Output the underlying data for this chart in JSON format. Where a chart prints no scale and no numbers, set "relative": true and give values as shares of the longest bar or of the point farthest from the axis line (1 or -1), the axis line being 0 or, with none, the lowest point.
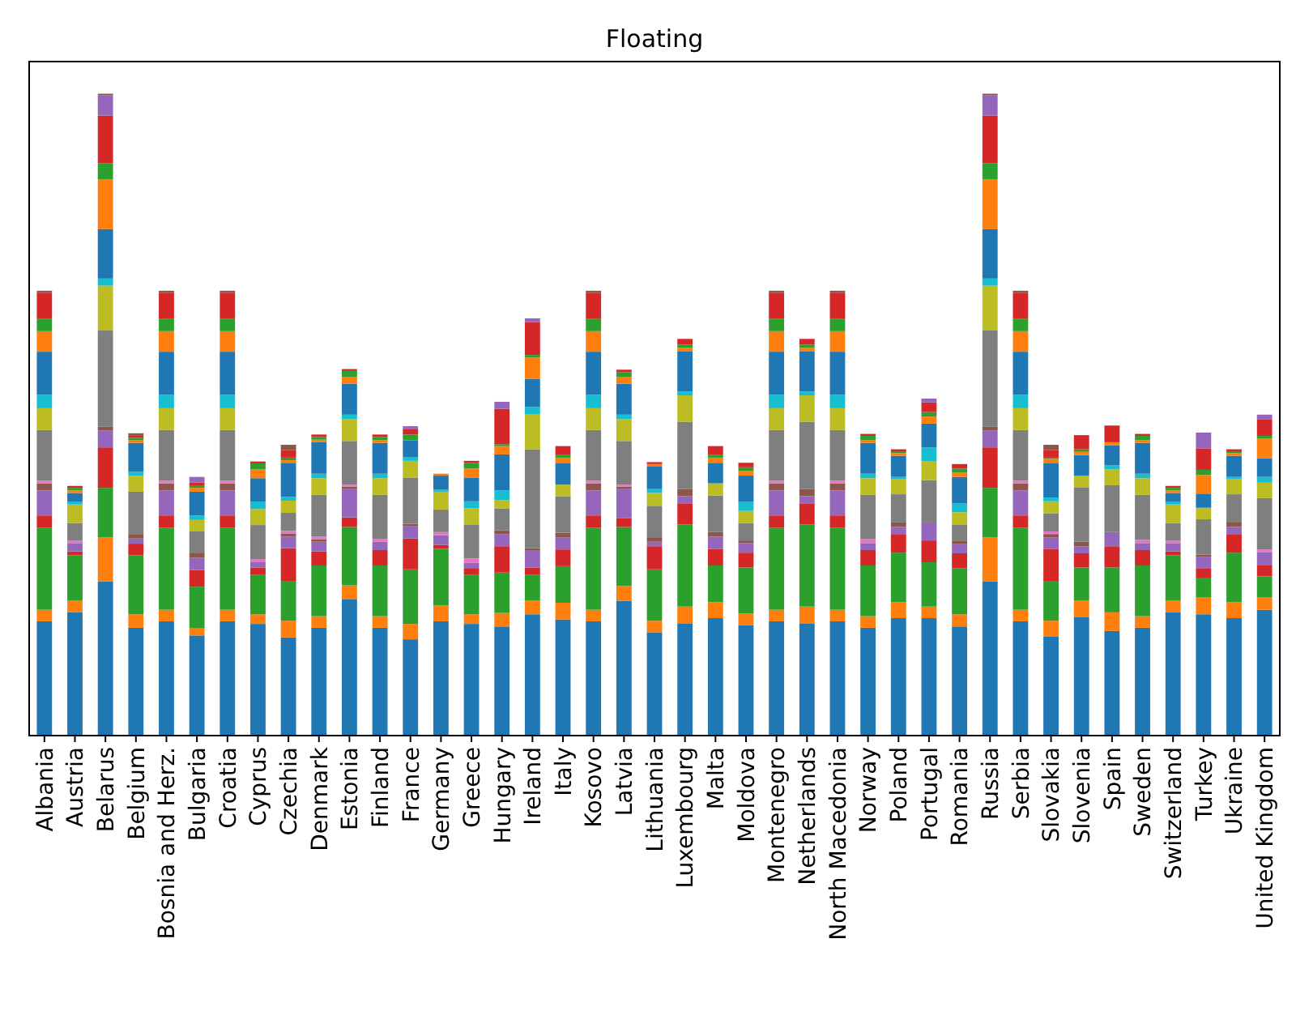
{
  "chart_data": {
    "type": "bar",
    "title": "Floating",
    "stacked": true,
    "relative": true,
    "categories": [
      "Albania",
      "Austria",
      "Belarus",
      "Belgium",
      "Bosnia and Herz.",
      "Bulgaria",
      "Croatia",
      "Cyprus",
      "Czechia",
      "Denmark",
      "Estonia",
      "Finland",
      "France",
      "Germany",
      "Greece",
      "Hungary",
      "Ireland",
      "Italy",
      "Kosovo",
      "Latvia",
      "Lithuania",
      "Luxembourg",
      "Malta",
      "Moldova",
      "Montenegro",
      "Netherlands",
      "North Macedonia",
      "Norway",
      "Poland",
      "Portugal",
      "Romania",
      "Russia",
      "Serbia",
      "Slovakia",
      "Slovenia",
      "Spain",
      "Sweden",
      "Switzerland",
      "Turkey",
      "Ukraine",
      "United Kingdom"
    ],
    "series": [
      {
        "color": "#1f77b4",
        "values": [
          0.178,
          0.192,
          0.24,
          0.168,
          0.178,
          0.156,
          0.178,
          0.174,
          0.153,
          0.168,
          0.212,
          0.168,
          0.15,
          0.178,
          0.174,
          0.17,
          0.189,
          0.181,
          0.178,
          0.21,
          0.161,
          0.175,
          0.183,
          0.172,
          0.178,
          0.175,
          0.178,
          0.168,
          0.183,
          0.183,
          0.17,
          0.24,
          0.178,
          0.154,
          0.185,
          0.163,
          0.168,
          0.192,
          0.189,
          0.183,
          0.196
        ]
      },
      {
        "color": "#ff7f0e",
        "values": [
          0.018,
          0.018,
          0.069,
          0.021,
          0.018,
          0.011,
          0.018,
          0.015,
          0.026,
          0.018,
          0.022,
          0.018,
          0.024,
          0.025,
          0.015,
          0.021,
          0.021,
          0.026,
          0.018,
          0.023,
          0.018,
          0.026,
          0.025,
          0.018,
          0.018,
          0.026,
          0.018,
          0.018,
          0.025,
          0.018,
          0.019,
          0.069,
          0.018,
          0.025,
          0.025,
          0.029,
          0.018,
          0.018,
          0.026,
          0.025,
          0.019
        ]
      },
      {
        "color": "#2ca02c",
        "values": [
          0.128,
          0.071,
          0.077,
          0.092,
          0.128,
          0.065,
          0.128,
          0.062,
          0.062,
          0.079,
          0.091,
          0.079,
          0.085,
          0.088,
          0.062,
          0.063,
          0.041,
          0.057,
          0.128,
          0.092,
          0.08,
          0.128,
          0.057,
          0.072,
          0.128,
          0.128,
          0.128,
          0.079,
          0.077,
          0.069,
          0.072,
          0.077,
          0.128,
          0.061,
          0.052,
          0.07,
          0.079,
          0.071,
          0.03,
          0.077,
          0.033
        ]
      },
      {
        "color": "#d62728",
        "values": [
          0.019,
          0.006,
          0.063,
          0.018,
          0.019,
          0.026,
          0.019,
          0.011,
          0.051,
          0.022,
          0.015,
          0.024,
          0.048,
          0.006,
          0.01,
          0.041,
          0.011,
          0.026,
          0.019,
          0.014,
          0.036,
          0.032,
          0.026,
          0.023,
          0.019,
          0.032,
          0.019,
          0.024,
          0.029,
          0.034,
          0.023,
          0.063,
          0.019,
          0.051,
          0.022,
          0.033,
          0.024,
          0.006,
          0.015,
          0.029,
          0.018
        ]
      },
      {
        "color": "#9467bd",
        "values": [
          0.039,
          0.013,
          0.026,
          0.008,
          0.039,
          0.019,
          0.039,
          0.009,
          0.018,
          0.015,
          0.044,
          0.013,
          0.019,
          0.015,
          0.008,
          0.019,
          0.026,
          0.019,
          0.039,
          0.045,
          0.007,
          0.012,
          0.019,
          0.015,
          0.039,
          0.012,
          0.039,
          0.011,
          0.011,
          0.028,
          0.015,
          0.026,
          0.039,
          0.018,
          0.011,
          0.022,
          0.011,
          0.013,
          0.018,
          0.011,
          0.02
        ]
      },
      {
        "color": "#8c564b",
        "values": [
          0.011,
          0,
          0.006,
          0.006,
          0.011,
          0.008,
          0.011,
          0,
          0.005,
          0.004,
          0.004,
          0,
          0.004,
          0,
          0,
          0.006,
          0.004,
          0.007,
          0.011,
          0.004,
          0.007,
          0.011,
          0.007,
          0.004,
          0.011,
          0.011,
          0.011,
          0,
          0.007,
          0,
          0.004,
          0.006,
          0.011,
          0.005,
          0.007,
          0,
          0,
          0,
          0.004,
          0.008,
          0
        ]
      },
      {
        "color": "#e377c2",
        "values": [
          0.004,
          0.004,
          0,
          0,
          0.004,
          0,
          0.004,
          0.004,
          0.004,
          0.004,
          0.003,
          0.004,
          0,
          0.005,
          0.007,
          0,
          0,
          0,
          0.004,
          0.003,
          0,
          0,
          0,
          0,
          0.004,
          0,
          0.004,
          0.006,
          0,
          0,
          0,
          0,
          0.004,
          0.004,
          0,
          0,
          0.005,
          0.004,
          0,
          0,
          0.004
        ]
      },
      {
        "color": "#7f7f7f",
        "values": [
          0.079,
          0.027,
          0.15,
          0.067,
          0.079,
          0.033,
          0.079,
          0.053,
          0.028,
          0.065,
          0.068,
          0.069,
          0.072,
          0.035,
          0.053,
          0.034,
          0.154,
          0.057,
          0.079,
          0.068,
          0.049,
          0.105,
          0.057,
          0.027,
          0.079,
          0.105,
          0.079,
          0.069,
          0.044,
          0.066,
          0.026,
          0.15,
          0.079,
          0.028,
          0.085,
          0.073,
          0.07,
          0.027,
          0.055,
          0.043,
          0.08
        ]
      },
      {
        "color": "#bcbd22",
        "values": [
          0.034,
          0.029,
          0.07,
          0.025,
          0.034,
          0.018,
          0.034,
          0.025,
          0.019,
          0.026,
          0.034,
          0.026,
          0.026,
          0.028,
          0.025,
          0.013,
          0.055,
          0.018,
          0.034,
          0.034,
          0.02,
          0.041,
          0.019,
          0.019,
          0.034,
          0.041,
          0.034,
          0.026,
          0.024,
          0.029,
          0.019,
          0.07,
          0.034,
          0.019,
          0.018,
          0.025,
          0.026,
          0.029,
          0.018,
          0.024,
          0.024
        ]
      },
      {
        "color": "#17becf",
        "values": [
          0.021,
          0.004,
          0.011,
          0.006,
          0.021,
          0.007,
          0.021,
          0.011,
          0.006,
          0.007,
          0.007,
          0.007,
          0.006,
          0.003,
          0.011,
          0.015,
          0.011,
          0,
          0.021,
          0.007,
          0.006,
          0.006,
          0,
          0.014,
          0.021,
          0.006,
          0.021,
          0.007,
          0.003,
          0.022,
          0.014,
          0.011,
          0.021,
          0.006,
          0,
          0.006,
          0.007,
          0.004,
          0,
          0.003,
          0.009
        ]
      },
      {
        "color": "#1f77b4",
        "values": [
          0.067,
          0.014,
          0.077,
          0.045,
          0.067,
          0.037,
          0.067,
          0.037,
          0.053,
          0.049,
          0.048,
          0.048,
          0.026,
          0.022,
          0.037,
          0.056,
          0.044,
          0.033,
          0.067,
          0.048,
          0.035,
          0.063,
          0.032,
          0.041,
          0.067,
          0.063,
          0.067,
          0.048,
          0.033,
          0.037,
          0.041,
          0.077,
          0.067,
          0.053,
          0.032,
          0.031,
          0.048,
          0.014,
          0.022,
          0.033,
          0.029
        ]
      },
      {
        "color": "#ff7f0e",
        "values": [
          0.032,
          0.004,
          0.078,
          0.004,
          0.032,
          0.006,
          0.032,
          0.014,
          0.004,
          0.004,
          0.011,
          0.004,
          0,
          0.003,
          0.014,
          0.013,
          0.033,
          0.009,
          0.032,
          0.011,
          0.004,
          0.005,
          0.008,
          0.007,
          0.032,
          0.005,
          0.032,
          0.004,
          0.004,
          0.011,
          0.007,
          0.078,
          0.032,
          0.007,
          0.005,
          0.005,
          0.004,
          0.004,
          0.029,
          0.004,
          0.031
        ]
      },
      {
        "color": "#2ca02c",
        "values": [
          0.019,
          0.004,
          0.025,
          0.004,
          0.019,
          0.004,
          0.019,
          0.009,
          0.004,
          0.004,
          0.009,
          0.005,
          0.009,
          0,
          0.009,
          0.003,
          0.004,
          0.004,
          0.019,
          0.007,
          0,
          0.005,
          0.004,
          0.006,
          0.019,
          0.005,
          0.019,
          0.007,
          0.003,
          0.007,
          0.006,
          0.025,
          0.019,
          0.002,
          0.004,
          0,
          0.007,
          0.004,
          0.008,
          0.003,
          0.004
        ]
      },
      {
        "color": "#d62728",
        "values": [
          0.041,
          0.003,
          0.074,
          0.004,
          0.041,
          0.004,
          0.041,
          0.003,
          0.012,
          0.004,
          0.003,
          0.004,
          0.009,
          0,
          0.003,
          0.055,
          0.051,
          0.014,
          0.041,
          0.004,
          0.003,
          0.009,
          0.014,
          0.007,
          0.041,
          0.009,
          0.041,
          0.003,
          0.003,
          0.015,
          0.007,
          0.074,
          0.041,
          0.012,
          0.022,
          0.026,
          0.003,
          0.003,
          0.033,
          0.003,
          0.026
        ]
      },
      {
        "color": "#9467bd",
        "values": [
          0,
          0,
          0.032,
          0,
          0,
          0.009,
          0,
          0,
          0,
          0,
          0,
          0,
          0.004,
          0,
          0,
          0.011,
          0.006,
          0,
          0,
          0,
          0,
          0,
          0,
          0,
          0,
          0,
          0,
          0,
          0,
          0.006,
          0,
          0.032,
          0,
          0,
          0,
          0,
          0,
          0,
          0.025,
          0,
          0.007
        ]
      },
      {
        "color": "#8c564b",
        "values": [
          0.003,
          0,
          0.002,
          0.003,
          0.003,
          0,
          0.003,
          0,
          0.008,
          0,
          0,
          0,
          0,
          0,
          0,
          0,
          0,
          0,
          0.003,
          0,
          0,
          0,
          0,
          0,
          0.003,
          0,
          0.003,
          0,
          0,
          0,
          0,
          0.002,
          0.003,
          0.008,
          0,
          0,
          0,
          0,
          0,
          0,
          0
        ]
      }
    ]
  }
}
